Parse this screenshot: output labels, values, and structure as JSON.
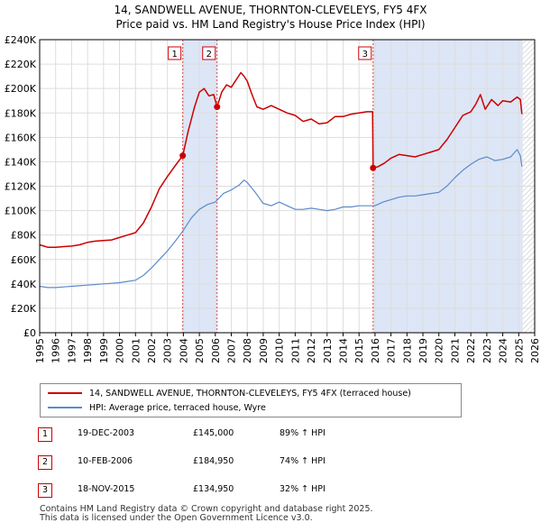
{
  "title_line1": "14, SANDWELL AVENUE, THORNTON-CLEVELEYS, FY5 4FX",
  "title_line2": "Price paid vs. HM Land Registry's House Price Index (HPI)",
  "chart_data": {
    "type": "line",
    "ylim": [
      0,
      240000
    ],
    "xlim": [
      1995,
      2026
    ],
    "y_ticks": [
      {
        "value": 0,
        "label": "£0"
      },
      {
        "value": 20000,
        "label": "£20K"
      },
      {
        "value": 40000,
        "label": "£40K"
      },
      {
        "value": 60000,
        "label": "£60K"
      },
      {
        "value": 80000,
        "label": "£80K"
      },
      {
        "value": 100000,
        "label": "£100K"
      },
      {
        "value": 120000,
        "label": "£120K"
      },
      {
        "value": 140000,
        "label": "£140K"
      },
      {
        "value": 160000,
        "label": "£160K"
      },
      {
        "value": 180000,
        "label": "£180K"
      },
      {
        "value": 200000,
        "label": "£200K"
      },
      {
        "value": 220000,
        "label": "£220K"
      },
      {
        "value": 240000,
        "label": "£240K"
      }
    ],
    "x_ticks": [
      "1995",
      "1996",
      "1997",
      "1998",
      "1999",
      "2000",
      "2001",
      "2002",
      "2003",
      "2004",
      "2005",
      "2006",
      "2007",
      "2008",
      "2009",
      "2010",
      "2011",
      "2012",
      "2013",
      "2014",
      "2015",
      "2016",
      "2017",
      "2018",
      "2019",
      "2020",
      "2021",
      "2022",
      "2023",
      "2024",
      "2025",
      "2026"
    ],
    "colors": {
      "property": "#cc0000",
      "hpi": "#5b8bc9",
      "shade": "#dde6f6",
      "grid": "#dddddd"
    },
    "shaded_ranges": [
      [
        2003.96,
        2006.11
      ],
      [
        2015.88,
        2025.25
      ]
    ],
    "hatch_from": 2025.25,
    "series": [
      {
        "name": "14, SANDWELL AVENUE, THORNTON-CLEVELEYS, FY5 4FX (terraced house)",
        "key": "property",
        "x": [
          1995.0,
          1995.5,
          1996.0,
          1996.5,
          1997.0,
          1997.5,
          1998.0,
          1998.5,
          1999.0,
          1999.5,
          2000.0,
          2000.5,
          2001.0,
          2001.5,
          2002.0,
          2002.5,
          2003.0,
          2003.5,
          2003.96,
          2004.3,
          2004.7,
          2005.0,
          2005.3,
          2005.6,
          2005.9,
          2006.11,
          2006.4,
          2006.7,
          2007.0,
          2007.3,
          2007.6,
          2007.8,
          2008.0,
          2008.3,
          2008.6,
          2009.0,
          2009.5,
          2010.0,
          2010.5,
          2011.0,
          2011.5,
          2012.0,
          2012.5,
          2013.0,
          2013.5,
          2014.0,
          2014.5,
          2015.0,
          2015.5,
          2015.85,
          2015.88,
          2016.2,
          2016.6,
          2017.0,
          2017.5,
          2018.0,
          2018.5,
          2019.0,
          2019.5,
          2020.0,
          2020.5,
          2021.0,
          2021.5,
          2022.0,
          2022.3,
          2022.6,
          2022.9,
          2023.3,
          2023.7,
          2024.0,
          2024.5,
          2024.9,
          2025.1,
          2025.2
        ],
        "values": [
          72000,
          70000,
          70000,
          70500,
          71000,
          72000,
          74000,
          75000,
          75500,
          76000,
          78000,
          80000,
          82000,
          90000,
          103000,
          118000,
          128000,
          137000,
          145000,
          165000,
          185000,
          197000,
          200000,
          194000,
          195000,
          184950,
          197000,
          203000,
          201000,
          207000,
          213000,
          210000,
          206000,
          195000,
          185000,
          183000,
          186000,
          183000,
          180000,
          178000,
          173000,
          175000,
          171000,
          172000,
          177000,
          177000,
          179000,
          180000,
          181000,
          181000,
          134950,
          136000,
          139000,
          143000,
          146000,
          145000,
          144000,
          146000,
          148000,
          150000,
          158000,
          168000,
          178000,
          181000,
          187000,
          195000,
          183000,
          191000,
          186000,
          190000,
          189000,
          193000,
          191000,
          179000
        ]
      },
      {
        "name": "HPI: Average price, terraced house, Wyre",
        "key": "hpi",
        "x": [
          1995.0,
          1995.5,
          1996.0,
          1996.5,
          1997.0,
          1997.5,
          1998.0,
          1998.5,
          1999.0,
          1999.5,
          2000.0,
          2000.5,
          2001.0,
          2001.5,
          2002.0,
          2002.5,
          2003.0,
          2003.5,
          2004.0,
          2004.5,
          2005.0,
          2005.5,
          2006.0,
          2006.5,
          2007.0,
          2007.5,
          2007.8,
          2008.0,
          2008.5,
          2009.0,
          2009.5,
          2010.0,
          2010.5,
          2011.0,
          2011.5,
          2012.0,
          2012.5,
          2013.0,
          2013.5,
          2014.0,
          2014.5,
          2015.0,
          2015.5,
          2016.0,
          2016.5,
          2017.0,
          2017.5,
          2018.0,
          2018.5,
          2019.0,
          2019.5,
          2020.0,
          2020.5,
          2021.0,
          2021.5,
          2022.0,
          2022.5,
          2023.0,
          2023.5,
          2024.0,
          2024.5,
          2024.9,
          2025.1,
          2025.2
        ],
        "values": [
          38000,
          37000,
          37000,
          37500,
          38000,
          38500,
          39000,
          39500,
          40000,
          40500,
          41000,
          42000,
          43000,
          47000,
          53000,
          60000,
          67000,
          75000,
          84000,
          94000,
          101000,
          105000,
          107000,
          114000,
          117000,
          121000,
          125000,
          123000,
          115000,
          106000,
          104000,
          107000,
          104000,
          101000,
          101000,
          102000,
          101000,
          100000,
          101000,
          103000,
          103000,
          104000,
          104000,
          104000,
          107000,
          109000,
          111000,
          112000,
          112000,
          113000,
          114000,
          115000,
          120000,
          127000,
          133000,
          138000,
          142000,
          144000,
          141000,
          142000,
          144000,
          150000,
          145000,
          136000
        ]
      }
    ],
    "sales": [
      {
        "label": "1",
        "date": "19-DEC-2003",
        "x": 2003.96,
        "price": "£145,000",
        "value": 145000,
        "hpi": "89% ↑ HPI"
      },
      {
        "label": "2",
        "date": "10-FEB-2006",
        "x": 2006.11,
        "price": "£184,950",
        "value": 184950,
        "hpi": "74% ↑ HPI"
      },
      {
        "label": "3",
        "date": "18-NOV-2015",
        "x": 2015.88,
        "price": "£134,950",
        "value": 134950,
        "hpi": "32% ↑ HPI"
      }
    ]
  },
  "legend": {
    "property_label": "14, SANDWELL AVENUE, THORNTON-CLEVELEYS, FY5 4FX (terraced house)",
    "hpi_label": "HPI: Average price, terraced house, Wyre"
  },
  "footer": {
    "line1": "Contains HM Land Registry data © Crown copyright and database right 2025.",
    "line2": "This data is licensed under the Open Government Licence v3.0."
  }
}
